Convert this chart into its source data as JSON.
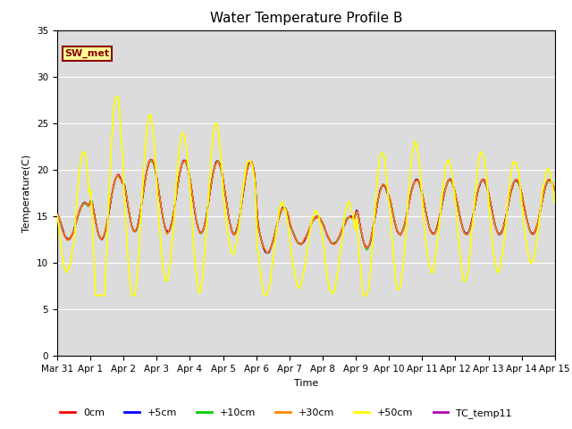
{
  "title": "Water Temperature Profile B",
  "xlabel": "Time",
  "ylabel": "Temperature(C)",
  "ylim": [
    0,
    35
  ],
  "yticks": [
    0,
    5,
    10,
    15,
    20,
    25,
    30,
    35
  ],
  "annotation_text": "SW_met",
  "bg_color": "#dcdcdc",
  "fig_bg": "#ffffff",
  "series": {
    "0cm": {
      "color": "#ff0000",
      "lw": 1.0,
      "zorder": 5
    },
    "+5cm": {
      "color": "#0000ff",
      "lw": 1.0,
      "zorder": 4
    },
    "+10cm": {
      "color": "#00cc00",
      "lw": 1.0,
      "zorder": 3
    },
    "+30cm": {
      "color": "#ff8800",
      "lw": 1.0,
      "zorder": 6
    },
    "+50cm": {
      "color": "#ffff00",
      "lw": 1.2,
      "zorder": 7
    },
    "TC_temp11": {
      "color": "#aa00aa",
      "lw": 1.0,
      "zorder": 2
    }
  },
  "xtick_labels": [
    "Mar 31",
    "Apr 1",
    "Apr 2",
    "Apr 3",
    "Apr 4",
    "Apr 5",
    "Apr 6",
    "Apr 7",
    "Apr 8",
    "Apr 9",
    "Apr 10",
    "Apr 11",
    "Apr 12",
    "Apr 13",
    "Apr 14",
    "Apr 15"
  ],
  "title_fontsize": 11,
  "axis_fontsize": 8,
  "tick_fontsize": 7.5
}
